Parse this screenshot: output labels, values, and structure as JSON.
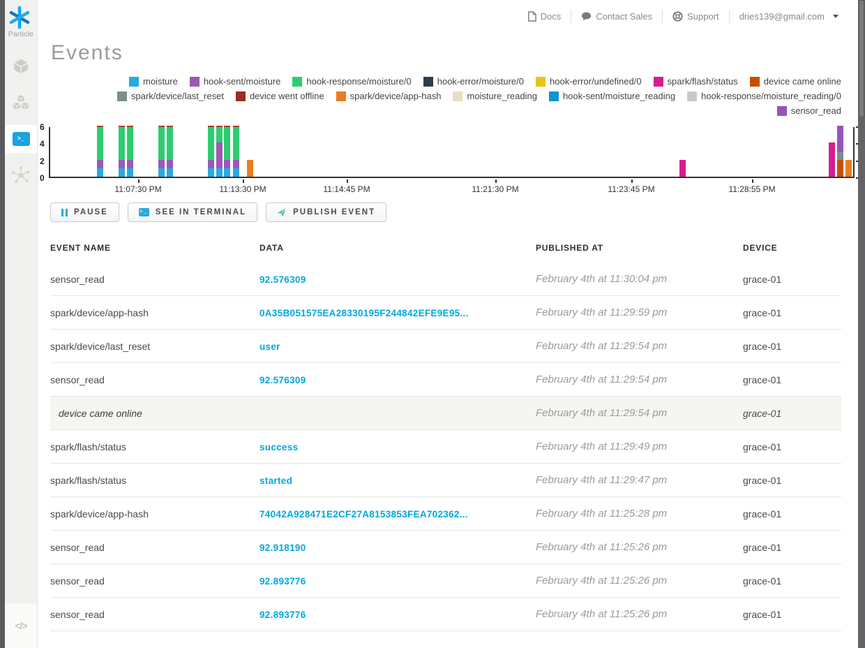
{
  "sidebar": {
    "logo_label": "Particle",
    "items": [
      {
        "id": "devices",
        "icon": "cube-icon",
        "active": false
      },
      {
        "id": "products",
        "icon": "cubes-icon",
        "active": false
      },
      {
        "id": "console",
        "icon": "terminal-icon",
        "active": true
      },
      {
        "id": "integrations",
        "icon": "hub-icon",
        "active": false
      },
      {
        "id": "developer-tools",
        "icon": "code-icon",
        "active": false
      }
    ],
    "terminal_glyph": ">_",
    "code_glyph": "</>"
  },
  "header": {
    "docs": "Docs",
    "contact_sales": "Contact Sales",
    "support": "Support",
    "account_email": "dries139@gmail.com"
  },
  "page": {
    "title": "Events"
  },
  "chart_data": {
    "type": "bar",
    "stacked": true,
    "title": "",
    "xlabel": "",
    "ylabel": "",
    "ylim": [
      0,
      6
    ],
    "yticks": [
      0,
      2,
      4,
      6
    ],
    "grid": false,
    "legend_position": "top",
    "legend": [
      {
        "label": "moisture",
        "color": "#27AAE1"
      },
      {
        "label": "hook-sent/moisture",
        "color": "#9B59B6"
      },
      {
        "label": "hook-response/moisture/0",
        "color": "#2ECC71"
      },
      {
        "label": "hook-error/moisture/0",
        "color": "#2C3E50"
      },
      {
        "label": "hook-error/undefined/0",
        "color": "#E8C417"
      },
      {
        "label": "spark/flash/status",
        "color": "#D81C8F"
      },
      {
        "label": "device came online",
        "color": "#C75000"
      },
      {
        "label": "spark/device/last_reset",
        "color": "#7F8C8D"
      },
      {
        "label": "device went offline",
        "color": "#9E2B25"
      },
      {
        "label": "spark/device/app-hash",
        "color": "#E67E22"
      },
      {
        "label": "moisture_reading",
        "color": "#EBDCC6"
      },
      {
        "label": "hook-sent/moisture_reading",
        "color": "#0D94D2"
      },
      {
        "label": "hook-response/moisture_reading/0",
        "color": "#C9C9C9"
      },
      {
        "label": "sensor_read",
        "color": "#9455BB"
      }
    ],
    "x_axis_ticks": [
      {
        "label": "11:07:30 PM",
        "pos": 0.111
      },
      {
        "label": "11:13:30 PM",
        "pos": 0.241
      },
      {
        "label": "11:14:45 PM",
        "pos": 0.37
      },
      {
        "label": "11:21:30 PM",
        "pos": 0.554
      },
      {
        "label": "11:23:45 PM",
        "pos": 0.723
      },
      {
        "label": "11:28:55 PM",
        "pos": 0.873
      }
    ],
    "bars": [
      {
        "pos": 0.058,
        "cap": true,
        "segments": [
          [
            "moisture",
            1
          ],
          [
            "hook-sent/moisture",
            1
          ],
          [
            "hook-response/moisture/0",
            4
          ]
        ]
      },
      {
        "pos": 0.085,
        "cap": true,
        "segments": [
          [
            "moisture",
            1
          ],
          [
            "hook-sent/moisture",
            1
          ],
          [
            "hook-response/moisture/0",
            4
          ]
        ]
      },
      {
        "pos": 0.095,
        "cap": true,
        "segments": [
          [
            "moisture",
            1
          ],
          [
            "hook-sent/moisture",
            1
          ],
          [
            "hook-response/moisture/0",
            4
          ]
        ]
      },
      {
        "pos": 0.134,
        "cap": true,
        "segments": [
          [
            "moisture",
            1
          ],
          [
            "hook-sent/moisture",
            1
          ],
          [
            "hook-response/moisture/0",
            4
          ]
        ]
      },
      {
        "pos": 0.145,
        "cap": true,
        "segments": [
          [
            "moisture",
            1
          ],
          [
            "hook-sent/moisture",
            1
          ],
          [
            "hook-response/moisture/0",
            4
          ]
        ]
      },
      {
        "pos": 0.196,
        "cap": true,
        "segments": [
          [
            "moisture",
            1
          ],
          [
            "hook-sent/moisture",
            1
          ],
          [
            "hook-response/moisture/0",
            4
          ]
        ]
      },
      {
        "pos": 0.206,
        "cap": true,
        "segments": [
          [
            "moisture",
            1
          ],
          [
            "hook-sent/moisture",
            3
          ],
          [
            "hook-response/moisture/0",
            2
          ]
        ]
      },
      {
        "pos": 0.216,
        "cap": true,
        "segments": [
          [
            "moisture",
            1
          ],
          [
            "hook-sent/moisture",
            1
          ],
          [
            "hook-response/moisture/0",
            4
          ]
        ]
      },
      {
        "pos": 0.227,
        "cap": true,
        "segments": [
          [
            "moisture",
            1
          ],
          [
            "hook-sent/moisture",
            1
          ],
          [
            "hook-response/moisture/0",
            4
          ]
        ]
      },
      {
        "pos": 0.244,
        "cap": false,
        "segments": [
          [
            "spark/device/app-hash",
            2
          ]
        ]
      },
      {
        "pos": 0.781,
        "cap": false,
        "segments": [
          [
            "spark/flash/status",
            2
          ]
        ]
      },
      {
        "pos": 0.966,
        "cap": false,
        "segments": [
          [
            "spark/flash/status",
            4
          ]
        ]
      },
      {
        "pos": 0.977,
        "cap": false,
        "segments": [
          [
            "device came online",
            2
          ],
          [
            "spark/device/last_reset",
            1
          ],
          [
            "sensor_read",
            3
          ]
        ]
      },
      {
        "pos": 0.987,
        "cap": false,
        "segments": [
          [
            "spark/device/app-hash",
            2
          ]
        ]
      }
    ],
    "bar_cap_color": "#A8432D"
  },
  "toolbar": {
    "pause": "PAUSE",
    "see_in_terminal": "SEE IN TERMINAL",
    "publish_event": "PUBLISH EVENT"
  },
  "table": {
    "headers": [
      "EVENT NAME",
      "DATA",
      "PUBLISHED AT",
      "DEVICE"
    ],
    "rows": [
      {
        "event": "sensor_read",
        "data": "92.576309",
        "published": "February 4th at 11:30:04 pm",
        "device": "grace-01",
        "system": false
      },
      {
        "event": "spark/device/app-hash",
        "data": "0A35B051575EA28330195F244842EFE9E95...",
        "published": "February 4th at 11:29:59 pm",
        "device": "grace-01",
        "system": false
      },
      {
        "event": "spark/device/last_reset",
        "data": "user",
        "published": "February 4th at 11:29:54 pm",
        "device": "grace-01",
        "system": false
      },
      {
        "event": "sensor_read",
        "data": "92.576309",
        "published": "February 4th at 11:29:54 pm",
        "device": "grace-01",
        "system": false
      },
      {
        "event": "device came online",
        "data": "",
        "published": "February 4th at 11:29:54 pm",
        "device": "grace-01",
        "system": true
      },
      {
        "event": "spark/flash/status",
        "data": "success",
        "published": "February 4th at 11:29:49 pm",
        "device": "grace-01",
        "system": false
      },
      {
        "event": "spark/flash/status",
        "data": "started",
        "published": "February 4th at 11:29:47 pm",
        "device": "grace-01",
        "system": false
      },
      {
        "event": "spark/device/app-hash",
        "data": "74042A928471E2CF27A8153853FEA702362...",
        "published": "February 4th at 11:25:28 pm",
        "device": "grace-01",
        "system": false
      },
      {
        "event": "sensor_read",
        "data": "92.918190",
        "published": "February 4th at 11:25:26 pm",
        "device": "grace-01",
        "system": false
      },
      {
        "event": "sensor_read",
        "data": "92.893776",
        "published": "February 4th at 11:25:26 pm",
        "device": "grace-01",
        "system": false
      },
      {
        "event": "sensor_read",
        "data": "92.893776",
        "published": "February 4th at 11:25:26 pm",
        "device": "grace-01",
        "system": false
      }
    ]
  }
}
